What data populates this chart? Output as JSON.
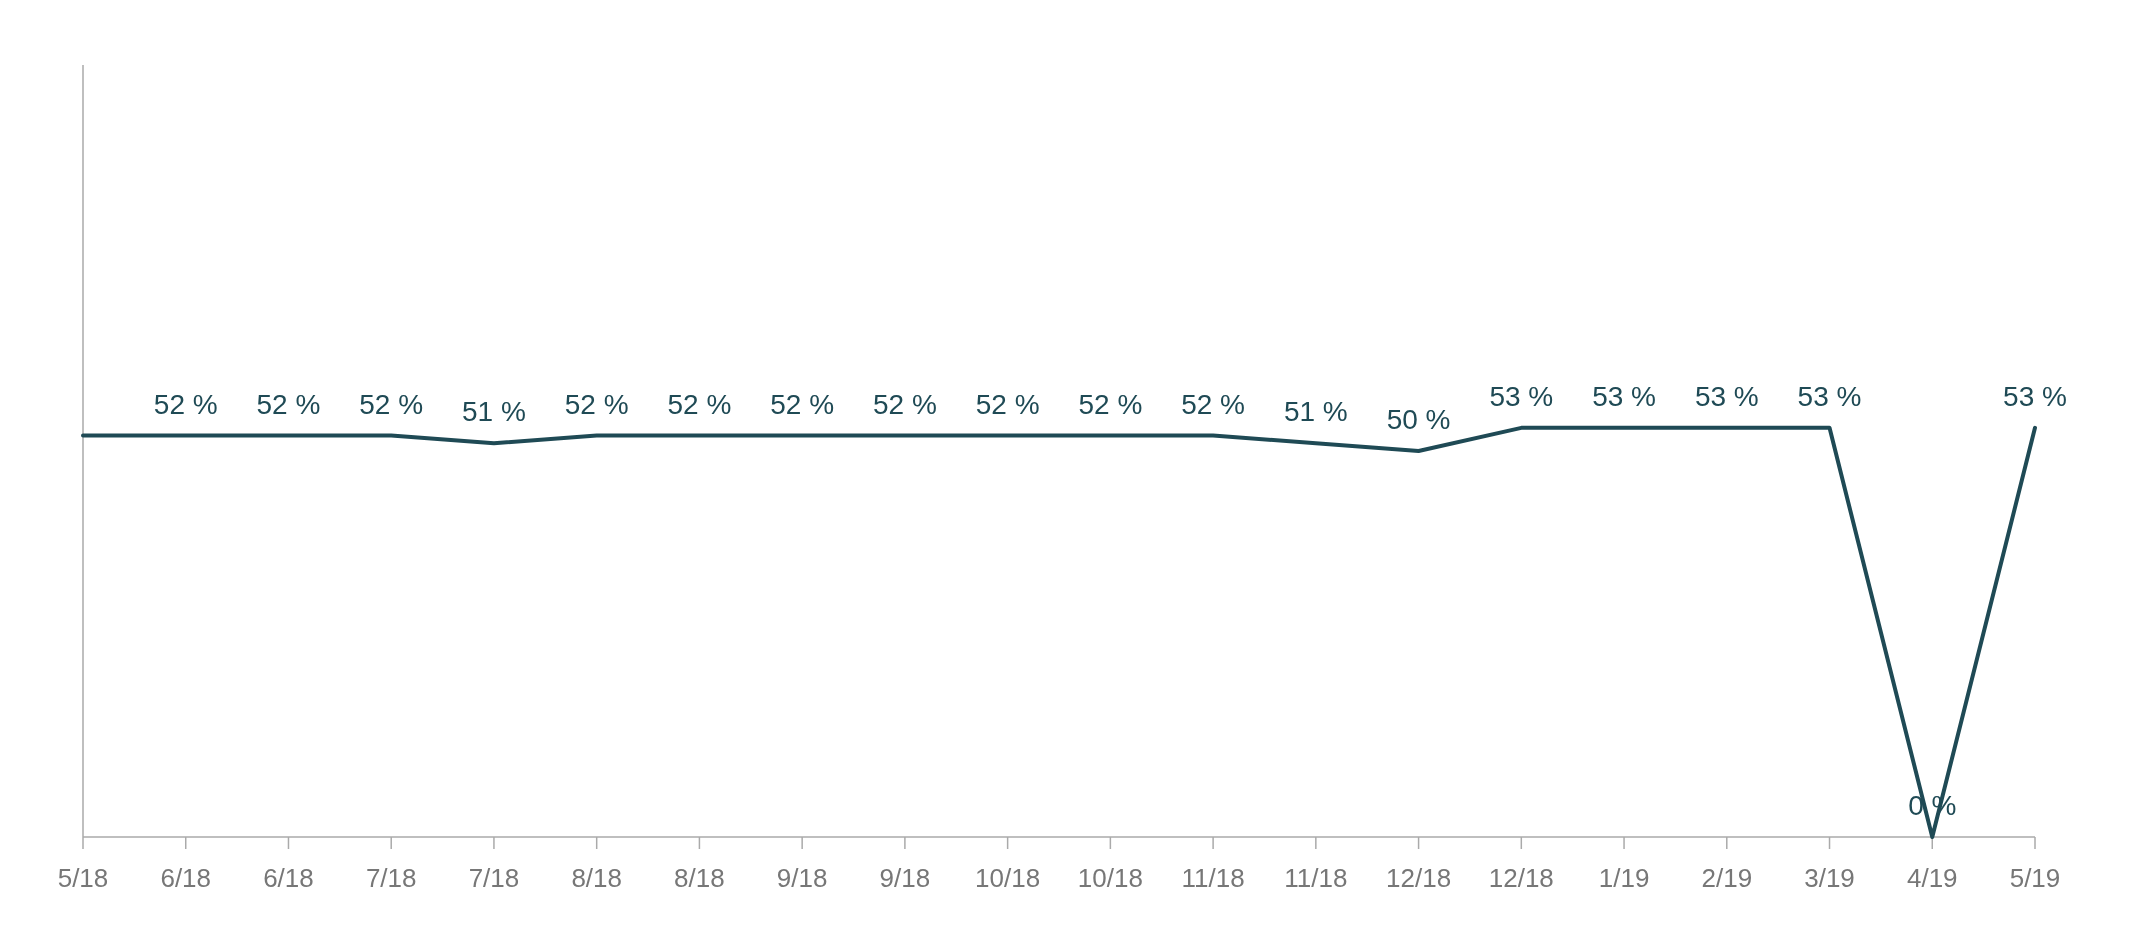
{
  "chart_data": {
    "type": "line",
    "categories": [
      "5/18",
      "6/18",
      "6/18",
      "7/18",
      "7/18",
      "8/18",
      "8/18",
      "9/18",
      "9/18",
      "10/18",
      "10/18",
      "11/18",
      "11/18",
      "12/18",
      "12/18",
      "1/19",
      "2/19",
      "3/19",
      "4/19",
      "5/19"
    ],
    "series": [
      {
        "color": "#1f4a55",
        "values": [
          52,
          52,
          52,
          52,
          51,
          52,
          52,
          52,
          52,
          52,
          52,
          52,
          51,
          50,
          53,
          53,
          53,
          53,
          0,
          53
        ],
        "value_labels": [
          null,
          "52 %",
          "52 %",
          "52 %",
          "51 %",
          "52 %",
          "52 %",
          "52 %",
          "52 %",
          "52 %",
          "52 %",
          "52 %",
          "51 %",
          "50 %",
          "53 %",
          "53 %",
          "53 %",
          "53 %",
          "0 %",
          "53 %"
        ]
      }
    ],
    "ylim": [
      0,
      100
    ],
    "tick_labels": "x"
  }
}
